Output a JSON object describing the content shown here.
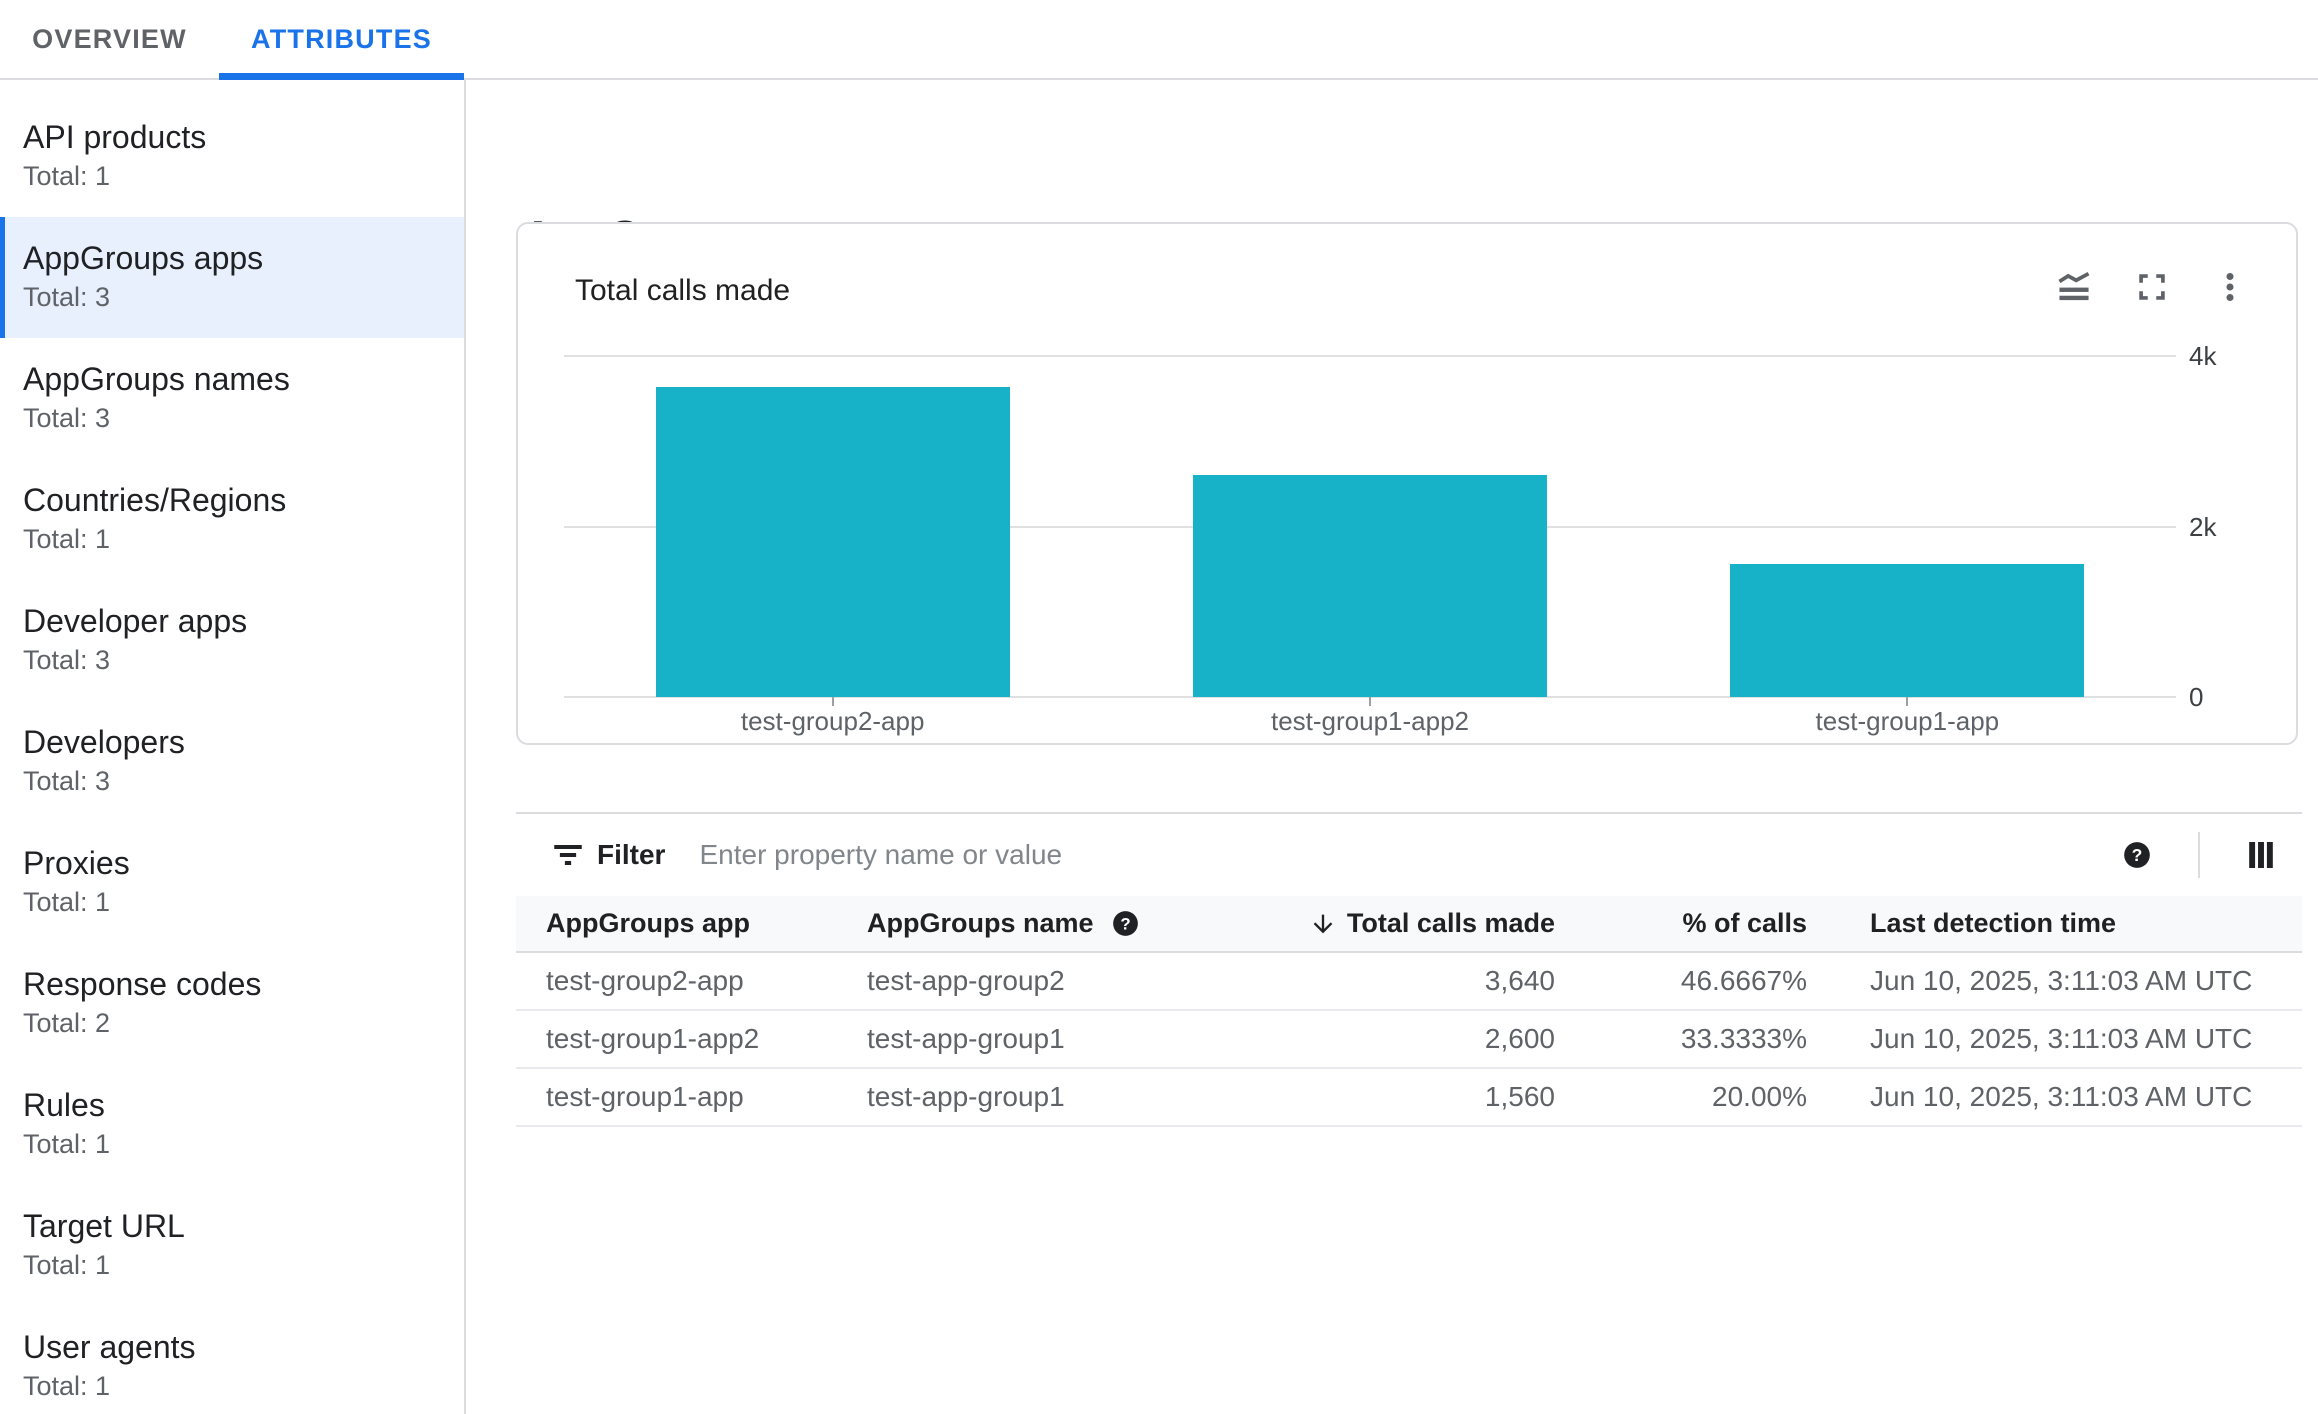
{
  "colors": {
    "accent_blue": "#1A73E8",
    "bar_teal": "#17B2C7",
    "selected_item_bg": "#E8F0FE",
    "border": "#DADCE0",
    "row_border": "#E8EAED",
    "text_primary": "#202124",
    "text_secondary": "#5F6368",
    "placeholder": "#80868B",
    "table_header_bg": "#F8F9FA"
  },
  "tabs": [
    {
      "label": "OVERVIEW",
      "active": false
    },
    {
      "label": "ATTRIBUTES",
      "active": true
    }
  ],
  "sidebar": {
    "items": [
      {
        "label": "API products",
        "total": "Total: 1",
        "selected": false
      },
      {
        "label": "AppGroups apps",
        "total": "Total: 3",
        "selected": true
      },
      {
        "label": "AppGroups names",
        "total": "Total: 3",
        "selected": false
      },
      {
        "label": "Countries/Regions",
        "total": "Total: 1",
        "selected": false
      },
      {
        "label": "Developer apps",
        "total": "Total: 3",
        "selected": false
      },
      {
        "label": "Developers",
        "total": "Total: 3",
        "selected": false
      },
      {
        "label": "Proxies",
        "total": "Total: 1",
        "selected": false
      },
      {
        "label": "Response codes",
        "total": "Total: 2",
        "selected": false
      },
      {
        "label": "Rules",
        "total": "Total: 1",
        "selected": false
      },
      {
        "label": "Target URL",
        "total": "Total: 1",
        "selected": false
      },
      {
        "label": "User agents",
        "total": "Total: 1",
        "selected": false
      }
    ]
  },
  "main": {
    "page_title": "AppGroups apps",
    "card": {
      "title": "Total calls made",
      "icons": [
        "area-chart",
        "fullscreen",
        "more-vert"
      ]
    },
    "filter": {
      "label": "Filter",
      "placeholder": "Enter property name or value"
    },
    "table": {
      "columns": [
        "AppGroups app",
        "AppGroups name",
        "Total calls made",
        "% of calls",
        "Last detection time"
      ],
      "sorted_column": "Total calls made",
      "sort_direction": "descending",
      "rows": [
        {
          "app": "test-group2-app",
          "name": "test-app-group2",
          "calls": "3,640",
          "pct": "46.6667%",
          "time": "Jun 10, 2025, 3:11:03 AM UTC"
        },
        {
          "app": "test-group1-app2",
          "name": "test-app-group1",
          "calls": "2,600",
          "pct": "33.3333%",
          "time": "Jun 10, 2025, 3:11:03 AM UTC"
        },
        {
          "app": "test-group1-app",
          "name": "test-app-group1",
          "calls": "1,560",
          "pct": "20.00%",
          "time": "Jun 10, 2025, 3:11:03 AM UTC"
        }
      ]
    }
  },
  "chart_data": {
    "type": "bar",
    "title": "Total calls made",
    "categories": [
      "test-group2-app",
      "test-group1-app2",
      "test-group1-app"
    ],
    "values": [
      3640,
      2600,
      1560
    ],
    "xlabel": "",
    "ylabel": "",
    "ylim": [
      0,
      4000
    ],
    "yticks": [
      {
        "value": 0,
        "label": "0"
      },
      {
        "value": 2000,
        "label": "2k"
      },
      {
        "value": 4000,
        "label": "4k"
      }
    ],
    "grid": true,
    "legend": "none",
    "bar_color": "#17B2C7"
  }
}
